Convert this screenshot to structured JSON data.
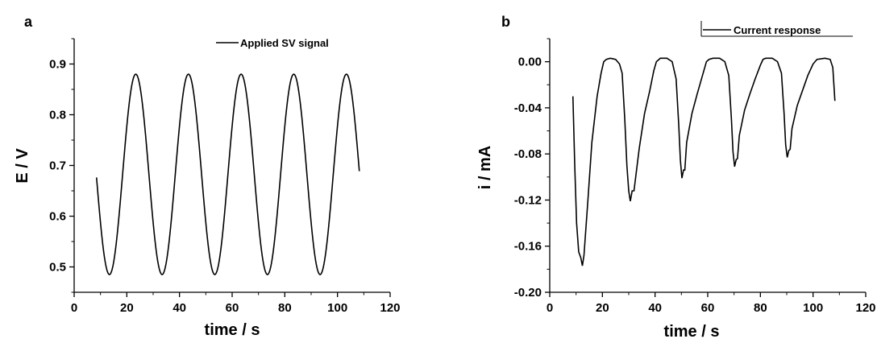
{
  "chart_data": [
    {
      "type": "line",
      "panel_label": "a",
      "xlabel": "time / s",
      "ylabel": "E / V",
      "xlim": [
        0,
        120
      ],
      "ylim": [
        0.45,
        0.95
      ],
      "xticks": [
        "0",
        "20",
        "40",
        "60",
        "80",
        "100",
        "120"
      ],
      "yticks": [
        "0.5",
        "0.6",
        "0.7",
        "0.8",
        "0.9"
      ],
      "grid": false,
      "legend": "top-right",
      "series": [
        {
          "name": "Applied SV signal",
          "color": "#000000",
          "period": 20,
          "x": [
            8.5,
            10,
            12,
            13.4,
            15,
            17,
            19,
            21,
            23.4,
            25,
            27,
            29,
            31,
            33.4,
            35,
            37,
            39,
            41,
            43.4,
            45,
            47,
            49,
            51,
            53.4,
            55,
            57,
            59,
            61,
            63.4,
            65,
            67,
            69,
            71,
            73.4,
            75,
            77,
            79,
            81,
            83.4,
            85,
            87,
            89,
            91,
            93.4,
            95,
            97,
            99,
            101,
            103.4,
            105,
            107,
            108.3
          ],
          "y": [
            0.683,
            0.609,
            0.52,
            0.485,
            0.509,
            0.595,
            0.717,
            0.825,
            0.88,
            0.856,
            0.77,
            0.648,
            0.54,
            0.485,
            0.509,
            0.595,
            0.717,
            0.825,
            0.88,
            0.856,
            0.77,
            0.648,
            0.54,
            0.485,
            0.509,
            0.595,
            0.717,
            0.825,
            0.88,
            0.856,
            0.77,
            0.648,
            0.54,
            0.485,
            0.509,
            0.595,
            0.717,
            0.825,
            0.88,
            0.856,
            0.77,
            0.648,
            0.54,
            0.485,
            0.509,
            0.595,
            0.717,
            0.825,
            0.88,
            0.856,
            0.77,
            0.69
          ]
        }
      ]
    },
    {
      "type": "line",
      "panel_label": "b",
      "xlabel": "time / s",
      "ylabel": "i / mA",
      "xlim": [
        0,
        120
      ],
      "ylim": [
        -0.2,
        0.02
      ],
      "xticks": [
        "0",
        "20",
        "40",
        "60",
        "80",
        "100",
        "120"
      ],
      "yticks": [
        "0.00",
        "-0.04",
        "-0.08",
        "-0.12",
        "-0.16",
        "-0.20"
      ],
      "grid": false,
      "legend": "top-right",
      "series": [
        {
          "name": "Current response",
          "color": "#000000",
          "x": [
            8.8,
            9.5,
            10.2,
            11,
            11.8,
            12.4,
            13,
            14.5,
            16,
            18,
            19.5,
            20.5,
            21.5,
            23,
            25,
            26.5,
            27.5,
            28.5,
            29.3,
            30,
            30.6,
            31.3,
            32,
            34,
            36,
            38,
            39.5,
            40.5,
            42,
            44.5,
            46.5,
            48,
            49,
            49.6,
            50.2,
            50.8,
            51.3,
            52,
            54,
            56,
            58,
            59.5,
            60.5,
            62,
            64.5,
            66.5,
            68,
            69,
            69.6,
            70.2,
            70.8,
            71.3,
            72,
            74,
            76,
            78,
            80,
            81,
            82,
            84.5,
            86.5,
            88,
            89,
            89.6,
            90.2,
            90.8,
            91.3,
            92,
            94,
            96,
            98,
            100,
            101.5,
            104.5,
            106.5,
            107.5,
            108.3
          ],
          "y": [
            -0.03,
            -0.09,
            -0.14,
            -0.165,
            -0.17,
            -0.177,
            -0.168,
            -0.12,
            -0.07,
            -0.03,
            -0.01,
            0.0,
            0.002,
            0.003,
            0.002,
            -0.002,
            -0.01,
            -0.05,
            -0.09,
            -0.112,
            -0.121,
            -0.112,
            -0.112,
            -0.075,
            -0.045,
            -0.025,
            -0.008,
            0.0,
            0.003,
            0.003,
            0.0,
            -0.015,
            -0.055,
            -0.085,
            -0.101,
            -0.094,
            -0.094,
            -0.07,
            -0.045,
            -0.028,
            -0.012,
            0.0,
            0.002,
            0.003,
            0.003,
            0.0,
            -0.012,
            -0.05,
            -0.078,
            -0.091,
            -0.085,
            -0.084,
            -0.064,
            -0.042,
            -0.028,
            -0.015,
            -0.003,
            0.002,
            0.003,
            0.003,
            0.0,
            -0.01,
            -0.045,
            -0.072,
            -0.083,
            -0.077,
            -0.076,
            -0.058,
            -0.038,
            -0.025,
            -0.012,
            -0.002,
            0.002,
            0.003,
            0.002,
            -0.005,
            -0.034
          ]
        }
      ]
    }
  ]
}
